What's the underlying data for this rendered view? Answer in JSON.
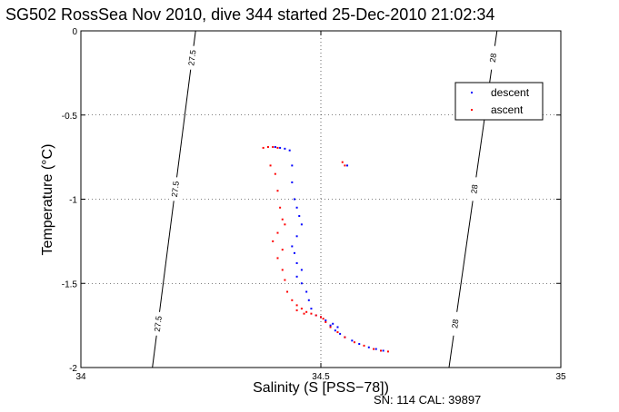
{
  "chart_data": {
    "type": "scatter",
    "title": "SG502 RossSea Nov 2010, dive 344 started 25-Dec-2010 21:02:34",
    "xlabel": "Salinity (S [PSS−78])",
    "ylabel": "Temperature (°C)",
    "footer": "SN: 114  CAL: 39897",
    "xlim": [
      34,
      35
    ],
    "ylim": [
      -2,
      0
    ],
    "xticks": [
      "34",
      "34.5",
      "35"
    ],
    "yticks": [
      "0",
      "-0.5",
      "-1",
      "-1.5",
      "-2"
    ],
    "grid": true,
    "legend_position": "top-right",
    "isopycnals": [
      {
        "label": "27.5",
        "points": [
          [
            34.239,
            0
          ],
          [
            34.149,
            -2
          ]
        ]
      },
      {
        "label": "28",
        "points": [
          [
            34.867,
            0
          ],
          [
            34.767,
            -2
          ]
        ]
      }
    ],
    "series": [
      {
        "name": "descent",
        "color": "#0000ff",
        "points": [
          [
            34.405,
            -0.69
          ],
          [
            34.415,
            -0.695
          ],
          [
            34.425,
            -0.7
          ],
          [
            34.435,
            -0.71
          ],
          [
            34.44,
            -0.8
          ],
          [
            34.44,
            -0.9
          ],
          [
            34.445,
            -1.0
          ],
          [
            34.45,
            -1.05
          ],
          [
            34.455,
            -1.1
          ],
          [
            34.46,
            -1.15
          ],
          [
            34.45,
            -1.22
          ],
          [
            34.44,
            -1.28
          ],
          [
            34.445,
            -1.32
          ],
          [
            34.45,
            -1.38
          ],
          [
            34.46,
            -1.42
          ],
          [
            34.45,
            -1.46
          ],
          [
            34.46,
            -1.5
          ],
          [
            34.47,
            -1.55
          ],
          [
            34.475,
            -1.6
          ],
          [
            34.48,
            -1.65
          ],
          [
            34.49,
            -1.69
          ],
          [
            34.5,
            -1.7
          ],
          [
            34.51,
            -1.72
          ],
          [
            34.52,
            -1.75
          ],
          [
            34.53,
            -1.78
          ],
          [
            34.54,
            -1.8
          ],
          [
            34.55,
            -1.82
          ],
          [
            34.565,
            -1.84
          ],
          [
            34.58,
            -1.86
          ],
          [
            34.6,
            -1.88
          ],
          [
            34.615,
            -1.89
          ],
          [
            34.63,
            -1.9
          ],
          [
            34.525,
            -1.74
          ],
          [
            34.535,
            -1.76
          ],
          [
            34.555,
            -0.8
          ]
        ]
      },
      {
        "name": "ascent",
        "color": "#ff0000",
        "points": [
          [
            34.38,
            -0.695
          ],
          [
            34.39,
            -0.69
          ],
          [
            34.4,
            -0.69
          ],
          [
            34.41,
            -0.695
          ],
          [
            34.395,
            -0.8
          ],
          [
            34.405,
            -0.85
          ],
          [
            34.41,
            -0.95
          ],
          [
            34.415,
            -1.05
          ],
          [
            34.42,
            -1.12
          ],
          [
            34.425,
            -1.15
          ],
          [
            34.41,
            -1.2
          ],
          [
            34.4,
            -1.25
          ],
          [
            34.42,
            -1.3
          ],
          [
            34.41,
            -1.35
          ],
          [
            34.42,
            -1.42
          ],
          [
            34.425,
            -1.48
          ],
          [
            34.43,
            -1.55
          ],
          [
            34.44,
            -1.6
          ],
          [
            34.45,
            -1.63
          ],
          [
            34.46,
            -1.65
          ],
          [
            34.47,
            -1.67
          ],
          [
            34.48,
            -1.68
          ],
          [
            34.49,
            -1.69
          ],
          [
            34.5,
            -1.7
          ],
          [
            34.51,
            -1.73
          ],
          [
            34.52,
            -1.76
          ],
          [
            34.535,
            -1.79
          ],
          [
            34.55,
            -1.82
          ],
          [
            34.57,
            -1.85
          ],
          [
            34.59,
            -1.87
          ],
          [
            34.61,
            -1.89
          ],
          [
            34.625,
            -1.9
          ],
          [
            34.64,
            -1.905
          ],
          [
            34.545,
            -0.78
          ],
          [
            34.55,
            -0.8
          ],
          [
            34.45,
            -1.66
          ],
          [
            34.465,
            -1.68
          ],
          [
            34.505,
            -1.71
          ]
        ]
      }
    ]
  }
}
